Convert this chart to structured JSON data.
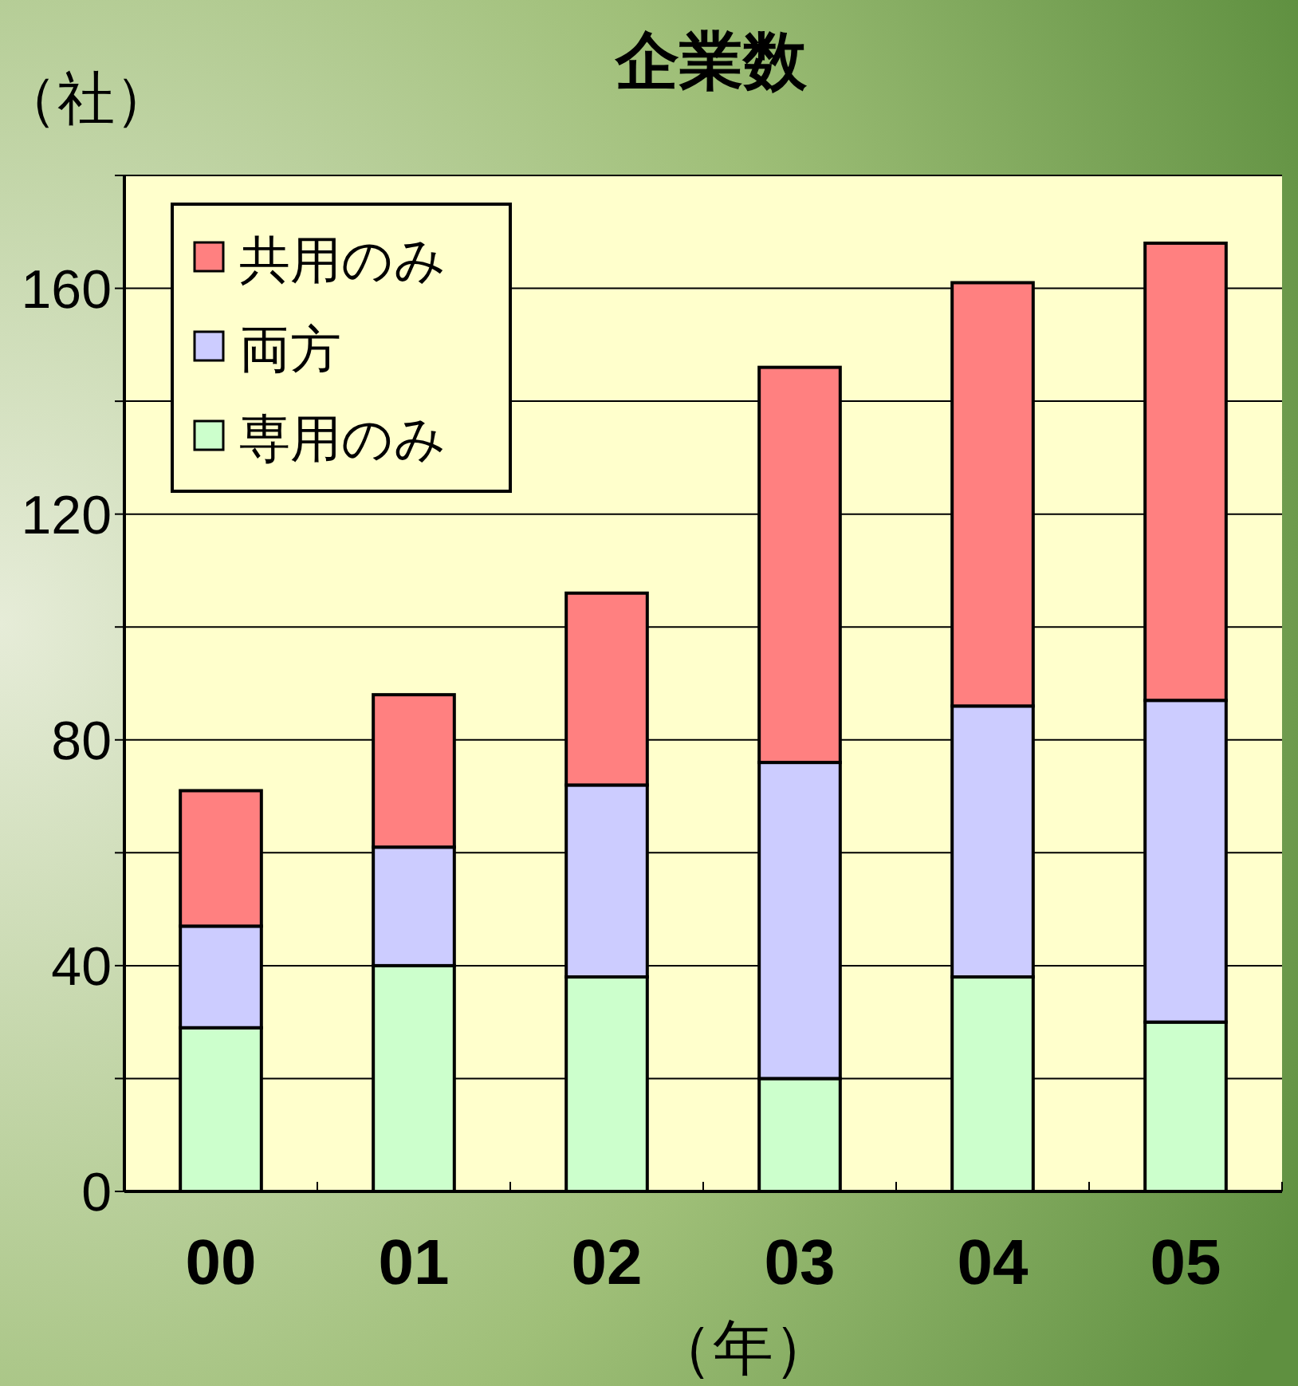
{
  "chart_data": {
    "type": "bar",
    "title": "企業数",
    "ylabel": "（社）",
    "xlabel": "（年）",
    "stacked": true,
    "categories": [
      "00",
      "01",
      "02",
      "03",
      "04",
      "05"
    ],
    "series": [
      {
        "name": "専用のみ",
        "color": "#ccffcc",
        "values": [
          29,
          40,
          38,
          20,
          38,
          30
        ]
      },
      {
        "name": "両方",
        "color": "#ccccff",
        "values": [
          18,
          21,
          34,
          56,
          48,
          57
        ]
      },
      {
        "name": "共用のみ",
        "color": "#ff8080",
        "values": [
          24,
          27,
          34,
          70,
          75,
          81
        ]
      }
    ],
    "ylim": [
      0,
      180
    ],
    "yticks": [
      0,
      {
        "value": 20,
        "label": null
      },
      40,
      {
        "value": 60,
        "label": null
      },
      80,
      {
        "value": 100,
        "label": null
      },
      120,
      {
        "value": 140,
        "label": null
      },
      160,
      {
        "value": 180,
        "label": null
      }
    ],
    "grid": "y",
    "legend": "top left"
  }
}
